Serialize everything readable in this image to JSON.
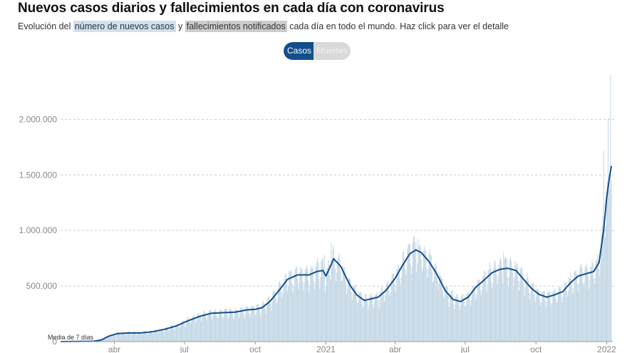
{
  "header": {
    "title": "Nuevos casos diarios y fallecimientos en cada día con coronavirus",
    "subtitle_pre": "Evolución del",
    "subtitle_cases": "número de nuevos casos",
    "subtitle_and": "y",
    "subtitle_deaths": "fallecimientos notificados",
    "subtitle_post": "cada día en todo el mundo. Haz click para ver el detalle"
  },
  "toggle": {
    "cases_label": "Casos",
    "deaths_label": "Muertes",
    "selected": "Casos"
  },
  "colors": {
    "bars": "#c6d8e6",
    "line": "#124f8c",
    "grid": "#cccccc",
    "axis_text": "#888888",
    "toggle_active": "#124f8c"
  },
  "annotation": "Media de 7 días",
  "chart_data": {
    "type": "bar",
    "title": "Nuevos casos diarios y fallecimientos en cada día con coronavirus",
    "x_range": [
      "2020-01-22",
      "2022-01-07"
    ],
    "ylim": [
      0,
      2400000
    ],
    "y_ticks": [
      0,
      500000,
      1000000,
      1500000,
      2000000
    ],
    "y_tick_labels": [
      "0",
      "500.000",
      "1.000.000",
      "1.500.000",
      "2.000.000"
    ],
    "x_ticks": [
      {
        "date": "2020-04-01",
        "label": "abr"
      },
      {
        "date": "2020-07-01",
        "label": "jul"
      },
      {
        "date": "2020-10-01",
        "label": "oct"
      },
      {
        "date": "2021-01-01",
        "label": "2021"
      },
      {
        "date": "2021-04-01",
        "label": "abr"
      },
      {
        "date": "2021-07-01",
        "label": "jul"
      },
      {
        "date": "2021-10-01",
        "label": "oct"
      },
      {
        "date": "2022-01-01",
        "label": "2022"
      }
    ],
    "grid": "horizontal dashed",
    "series": [
      {
        "name": "Media de 7 días",
        "style": "line",
        "points": [
          [
            "2020-01-22",
            0
          ],
          [
            "2020-02-15",
            2000
          ],
          [
            "2020-03-05",
            3000
          ],
          [
            "2020-03-15",
            15000
          ],
          [
            "2020-03-25",
            50000
          ],
          [
            "2020-04-05",
            72000
          ],
          [
            "2020-04-20",
            78000
          ],
          [
            "2020-05-05",
            78000
          ],
          [
            "2020-05-20",
            88000
          ],
          [
            "2020-06-05",
            110000
          ],
          [
            "2020-06-20",
            140000
          ],
          [
            "2020-07-05",
            185000
          ],
          [
            "2020-07-20",
            225000
          ],
          [
            "2020-08-05",
            255000
          ],
          [
            "2020-08-20",
            260000
          ],
          [
            "2020-09-05",
            265000
          ],
          [
            "2020-09-20",
            285000
          ],
          [
            "2020-10-01",
            290000
          ],
          [
            "2020-10-10",
            305000
          ],
          [
            "2020-10-20",
            360000
          ],
          [
            "2020-11-01",
            460000
          ],
          [
            "2020-11-12",
            560000
          ],
          [
            "2020-11-25",
            600000
          ],
          [
            "2020-12-10",
            600000
          ],
          [
            "2020-12-20",
            630000
          ],
          [
            "2020-12-28",
            640000
          ],
          [
            "2021-01-01",
            590000
          ],
          [
            "2021-01-05",
            650000
          ],
          [
            "2021-01-11",
            745000
          ],
          [
            "2021-01-20",
            680000
          ],
          [
            "2021-02-01",
            510000
          ],
          [
            "2021-02-10",
            420000
          ],
          [
            "2021-02-20",
            370000
          ],
          [
            "2021-03-01",
            385000
          ],
          [
            "2021-03-10",
            400000
          ],
          [
            "2021-03-20",
            460000
          ],
          [
            "2021-04-01",
            570000
          ],
          [
            "2021-04-10",
            680000
          ],
          [
            "2021-04-20",
            790000
          ],
          [
            "2021-04-28",
            825000
          ],
          [
            "2021-05-05",
            800000
          ],
          [
            "2021-05-15",
            720000
          ],
          [
            "2021-05-25",
            610000
          ],
          [
            "2021-06-05",
            460000
          ],
          [
            "2021-06-15",
            380000
          ],
          [
            "2021-06-25",
            360000
          ],
          [
            "2021-07-05",
            400000
          ],
          [
            "2021-07-15",
            490000
          ],
          [
            "2021-07-25",
            550000
          ],
          [
            "2021-08-05",
            620000
          ],
          [
            "2021-08-15",
            650000
          ],
          [
            "2021-08-25",
            660000
          ],
          [
            "2021-09-05",
            640000
          ],
          [
            "2021-09-15",
            560000
          ],
          [
            "2021-09-25",
            480000
          ],
          [
            "2021-10-05",
            425000
          ],
          [
            "2021-10-15",
            400000
          ],
          [
            "2021-10-25",
            420000
          ],
          [
            "2021-11-05",
            450000
          ],
          [
            "2021-11-15",
            530000
          ],
          [
            "2021-11-25",
            590000
          ],
          [
            "2021-12-05",
            610000
          ],
          [
            "2021-12-15",
            630000
          ],
          [
            "2021-12-22",
            710000
          ],
          [
            "2021-12-28",
            1000000
          ],
          [
            "2022-01-01",
            1300000
          ],
          [
            "2022-01-04",
            1450000
          ],
          [
            "2022-01-07",
            1580000
          ]
        ]
      },
      {
        "name": "Casos diarios",
        "style": "bars",
        "peaks": [
          [
            "2020-12-30",
            780000
          ],
          [
            "2021-01-08",
            890000
          ],
          [
            "2021-04-28",
            900000
          ],
          [
            "2021-08-20",
            800000
          ],
          [
            "2021-12-28",
            1720000
          ],
          [
            "2022-01-03",
            2010000
          ],
          [
            "2022-01-06",
            2400000
          ]
        ]
      }
    ]
  }
}
